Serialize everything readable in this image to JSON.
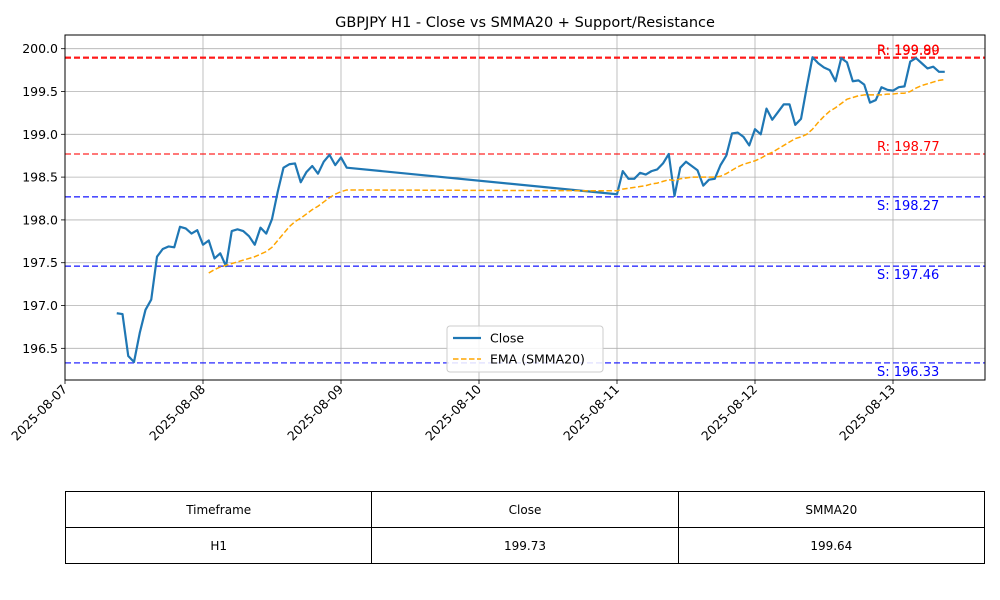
{
  "chart_data": {
    "type": "line",
    "title": "GBPJPY H1 - Close vs SMMA20 + Support/Resistance",
    "xlabel": "",
    "ylabel": "",
    "xlim": [
      "2025-08-07 00:00",
      "2025-08-13 16:00"
    ],
    "ylim": [
      196.13,
      200.16
    ],
    "grid": true,
    "legend": {
      "position": "bottom-center"
    },
    "x_ticks": [
      "2025-08-07",
      "2025-08-08",
      "2025-08-09",
      "2025-08-10",
      "2025-08-11",
      "2025-08-12",
      "2025-08-13"
    ],
    "y_ticks": [
      "196.5",
      "197.0",
      "197.5",
      "198.0",
      "198.5",
      "199.0",
      "199.5",
      "200.0"
    ],
    "series": [
      {
        "name": "Close",
        "color": "#1f77b4",
        "style": "solid",
        "points": [
          [
            "2025-08-07 09:00",
            196.91
          ],
          [
            "2025-08-07 10:00",
            196.9
          ],
          [
            "2025-08-07 11:00",
            196.41
          ],
          [
            "2025-08-07 12:00",
            196.34
          ],
          [
            "2025-08-07 13:00",
            196.68
          ],
          [
            "2025-08-07 14:00",
            196.95
          ],
          [
            "2025-08-07 15:00",
            197.07
          ],
          [
            "2025-08-07 16:00",
            197.57
          ],
          [
            "2025-08-07 17:00",
            197.66
          ],
          [
            "2025-08-07 18:00",
            197.69
          ],
          [
            "2025-08-07 19:00",
            197.68
          ],
          [
            "2025-08-07 20:00",
            197.92
          ],
          [
            "2025-08-07 21:00",
            197.9
          ],
          [
            "2025-08-07 22:00",
            197.84
          ],
          [
            "2025-08-07 23:00",
            197.88
          ],
          [
            "2025-08-08 00:00",
            197.71
          ],
          [
            "2025-08-08 01:00",
            197.76
          ],
          [
            "2025-08-08 02:00",
            197.55
          ],
          [
            "2025-08-08 03:00",
            197.61
          ],
          [
            "2025-08-08 04:00",
            197.46
          ],
          [
            "2025-08-08 05:00",
            197.87
          ],
          [
            "2025-08-08 06:00",
            197.89
          ],
          [
            "2025-08-08 07:00",
            197.87
          ],
          [
            "2025-08-08 08:00",
            197.81
          ],
          [
            "2025-08-08 09:00",
            197.71
          ],
          [
            "2025-08-08 10:00",
            197.91
          ],
          [
            "2025-08-08 11:00",
            197.84
          ],
          [
            "2025-08-08 12:00",
            198.01
          ],
          [
            "2025-08-08 13:00",
            198.33
          ],
          [
            "2025-08-08 14:00",
            198.61
          ],
          [
            "2025-08-08 15:00",
            198.65
          ],
          [
            "2025-08-08 16:00",
            198.66
          ],
          [
            "2025-08-08 17:00",
            198.44
          ],
          [
            "2025-08-08 18:00",
            198.56
          ],
          [
            "2025-08-08 19:00",
            198.63
          ],
          [
            "2025-08-08 20:00",
            198.54
          ],
          [
            "2025-08-08 21:00",
            198.68
          ],
          [
            "2025-08-08 22:00",
            198.76
          ],
          [
            "2025-08-08 23:00",
            198.64
          ],
          [
            "2025-08-09 00:00",
            198.73
          ],
          [
            "2025-08-09 01:00",
            198.61
          ],
          [
            "2025-08-11 00:00",
            198.3
          ],
          [
            "2025-08-11 01:00",
            198.57
          ],
          [
            "2025-08-11 02:00",
            198.48
          ],
          [
            "2025-08-11 03:00",
            198.48
          ],
          [
            "2025-08-11 04:00",
            198.55
          ],
          [
            "2025-08-11 05:00",
            198.53
          ],
          [
            "2025-08-11 06:00",
            198.57
          ],
          [
            "2025-08-11 07:00",
            198.59
          ],
          [
            "2025-08-11 08:00",
            198.66
          ],
          [
            "2025-08-11 09:00",
            198.77
          ],
          [
            "2025-08-11 10:00",
            198.28
          ],
          [
            "2025-08-11 11:00",
            198.61
          ],
          [
            "2025-08-11 12:00",
            198.68
          ],
          [
            "2025-08-11 13:00",
            198.63
          ],
          [
            "2025-08-11 14:00",
            198.58
          ],
          [
            "2025-08-11 15:00",
            198.4
          ],
          [
            "2025-08-11 16:00",
            198.47
          ],
          [
            "2025-08-11 17:00",
            198.48
          ],
          [
            "2025-08-11 18:00",
            198.64
          ],
          [
            "2025-08-11 19:00",
            198.75
          ],
          [
            "2025-08-11 20:00",
            199.01
          ],
          [
            "2025-08-11 21:00",
            199.02
          ],
          [
            "2025-08-11 22:00",
            198.97
          ],
          [
            "2025-08-11 23:00",
            198.87
          ],
          [
            "2025-08-12 00:00",
            199.06
          ],
          [
            "2025-08-12 01:00",
            199.0
          ],
          [
            "2025-08-12 02:00",
            199.3
          ],
          [
            "2025-08-12 03:00",
            199.17
          ],
          [
            "2025-08-12 04:00",
            199.26
          ],
          [
            "2025-08-12 05:00",
            199.35
          ],
          [
            "2025-08-12 06:00",
            199.35
          ],
          [
            "2025-08-12 07:00",
            199.11
          ],
          [
            "2025-08-12 08:00",
            199.18
          ],
          [
            "2025-08-12 09:00",
            199.55
          ],
          [
            "2025-08-12 10:00",
            199.9
          ],
          [
            "2025-08-12 11:00",
            199.83
          ],
          [
            "2025-08-12 12:00",
            199.78
          ],
          [
            "2025-08-12 13:00",
            199.75
          ],
          [
            "2025-08-12 14:00",
            199.62
          ],
          [
            "2025-08-12 15:00",
            199.89
          ],
          [
            "2025-08-12 16:00",
            199.84
          ],
          [
            "2025-08-12 17:00",
            199.62
          ],
          [
            "2025-08-12 18:00",
            199.63
          ],
          [
            "2025-08-12 19:00",
            199.58
          ],
          [
            "2025-08-12 20:00",
            199.37
          ],
          [
            "2025-08-12 21:00",
            199.4
          ],
          [
            "2025-08-12 22:00",
            199.55
          ],
          [
            "2025-08-12 23:00",
            199.52
          ],
          [
            "2025-08-13 00:00",
            199.51
          ],
          [
            "2025-08-13 01:00",
            199.55
          ],
          [
            "2025-08-13 02:00",
            199.56
          ],
          [
            "2025-08-13 03:00",
            199.85
          ],
          [
            "2025-08-13 04:00",
            199.89
          ],
          [
            "2025-08-13 05:00",
            199.83
          ],
          [
            "2025-08-13 06:00",
            199.77
          ],
          [
            "2025-08-13 07:00",
            199.79
          ],
          [
            "2025-08-13 08:00",
            199.73
          ],
          [
            "2025-08-13 09:00",
            199.73
          ]
        ]
      },
      {
        "name": "EMA (SMMA20)",
        "color": "#ffa500",
        "style": "dashed",
        "points": [
          [
            "2025-08-08 01:00",
            197.38
          ],
          [
            "2025-08-08 02:00",
            197.42
          ],
          [
            "2025-08-08 03:00",
            197.45
          ],
          [
            "2025-08-08 04:00",
            197.47
          ],
          [
            "2025-08-08 05:00",
            197.49
          ],
          [
            "2025-08-08 06:00",
            197.51
          ],
          [
            "2025-08-08 07:00",
            197.53
          ],
          [
            "2025-08-08 08:00",
            197.55
          ],
          [
            "2025-08-08 09:00",
            197.57
          ],
          [
            "2025-08-08 10:00",
            197.6
          ],
          [
            "2025-08-08 11:00",
            197.63
          ],
          [
            "2025-08-08 12:00",
            197.68
          ],
          [
            "2025-08-08 13:00",
            197.76
          ],
          [
            "2025-08-08 14:00",
            197.84
          ],
          [
            "2025-08-08 15:00",
            197.92
          ],
          [
            "2025-08-08 16:00",
            197.98
          ],
          [
            "2025-08-08 17:00",
            198.02
          ],
          [
            "2025-08-08 18:00",
            198.07
          ],
          [
            "2025-08-08 19:00",
            198.12
          ],
          [
            "2025-08-08 20:00",
            198.16
          ],
          [
            "2025-08-08 21:00",
            198.21
          ],
          [
            "2025-08-08 22:00",
            198.26
          ],
          [
            "2025-08-08 23:00",
            198.3
          ],
          [
            "2025-08-09 00:00",
            198.33
          ],
          [
            "2025-08-09 01:00",
            198.35
          ],
          [
            "2025-08-11 00:00",
            198.34
          ],
          [
            "2025-08-11 01:00",
            198.36
          ],
          [
            "2025-08-11 02:00",
            198.37
          ],
          [
            "2025-08-11 03:00",
            198.38
          ],
          [
            "2025-08-11 04:00",
            198.39
          ],
          [
            "2025-08-11 05:00",
            198.4
          ],
          [
            "2025-08-11 06:00",
            198.42
          ],
          [
            "2025-08-11 07:00",
            198.43
          ],
          [
            "2025-08-11 08:00",
            198.45
          ],
          [
            "2025-08-11 09:00",
            198.47
          ],
          [
            "2025-08-11 10:00",
            198.46
          ],
          [
            "2025-08-11 11:00",
            198.48
          ],
          [
            "2025-08-11 12:00",
            198.49
          ],
          [
            "2025-08-11 13:00",
            198.5
          ],
          [
            "2025-08-11 14:00",
            198.5
          ],
          [
            "2025-08-11 15:00",
            198.5
          ],
          [
            "2025-08-11 16:00",
            198.5
          ],
          [
            "2025-08-11 17:00",
            198.5
          ],
          [
            "2025-08-11 18:00",
            198.51
          ],
          [
            "2025-08-11 19:00",
            198.54
          ],
          [
            "2025-08-11 20:00",
            198.58
          ],
          [
            "2025-08-11 21:00",
            198.62
          ],
          [
            "2025-08-11 22:00",
            198.65
          ],
          [
            "2025-08-11 23:00",
            198.67
          ],
          [
            "2025-08-12 00:00",
            198.69
          ],
          [
            "2025-08-12 01:00",
            198.72
          ],
          [
            "2025-08-12 02:00",
            198.76
          ],
          [
            "2025-08-12 03:00",
            198.79
          ],
          [
            "2025-08-12 04:00",
            198.83
          ],
          [
            "2025-08-12 05:00",
            198.87
          ],
          [
            "2025-08-12 06:00",
            198.91
          ],
          [
            "2025-08-12 07:00",
            198.95
          ],
          [
            "2025-08-12 08:00",
            198.97
          ],
          [
            "2025-08-12 09:00",
            199.0
          ],
          [
            "2025-08-12 10:00",
            199.06
          ],
          [
            "2025-08-12 11:00",
            199.14
          ],
          [
            "2025-08-12 12:00",
            199.21
          ],
          [
            "2025-08-12 13:00",
            199.27
          ],
          [
            "2025-08-12 14:00",
            199.31
          ],
          [
            "2025-08-12 15:00",
            199.36
          ],
          [
            "2025-08-12 16:00",
            199.41
          ],
          [
            "2025-08-12 17:00",
            199.43
          ],
          [
            "2025-08-12 18:00",
            199.45
          ],
          [
            "2025-08-12 19:00",
            199.46
          ],
          [
            "2025-08-12 20:00",
            199.46
          ],
          [
            "2025-08-12 21:00",
            199.46
          ],
          [
            "2025-08-12 22:00",
            199.46
          ],
          [
            "2025-08-12 23:00",
            199.47
          ],
          [
            "2025-08-13 00:00",
            199.47
          ],
          [
            "2025-08-13 01:00",
            199.48
          ],
          [
            "2025-08-13 02:00",
            199.48
          ],
          [
            "2025-08-13 03:00",
            199.5
          ],
          [
            "2025-08-13 04:00",
            199.54
          ],
          [
            "2025-08-13 05:00",
            199.57
          ],
          [
            "2025-08-13 06:00",
            199.59
          ],
          [
            "2025-08-13 07:00",
            199.61
          ],
          [
            "2025-08-13 08:00",
            199.63
          ],
          [
            "2025-08-13 09:00",
            199.64
          ]
        ]
      }
    ],
    "levels": [
      {
        "label": "R: 199.90",
        "value": 199.9,
        "kind": "resistance",
        "color": "#ff0000",
        "opacity": 0.8
      },
      {
        "label": "R: 199.89",
        "value": 199.89,
        "kind": "resistance",
        "color": "#ff0000",
        "opacity": 0.8
      },
      {
        "label": "R: 198.77",
        "value": 198.77,
        "kind": "resistance",
        "color": "#ff0000",
        "opacity": 0.7
      },
      {
        "label": "S: 198.27",
        "value": 198.27,
        "kind": "support",
        "color": "#0000ff",
        "opacity": 0.7
      },
      {
        "label": "S: 197.46",
        "value": 197.46,
        "kind": "support",
        "color": "#0000ff",
        "opacity": 0.7
      },
      {
        "label": "S: 196.33",
        "value": 196.33,
        "kind": "support",
        "color": "#0000ff",
        "opacity": 0.7
      }
    ]
  },
  "table": {
    "headers": [
      "Timeframe",
      "Close",
      "SMMA20"
    ],
    "row": [
      "H1",
      "199.73",
      "199.64"
    ]
  }
}
